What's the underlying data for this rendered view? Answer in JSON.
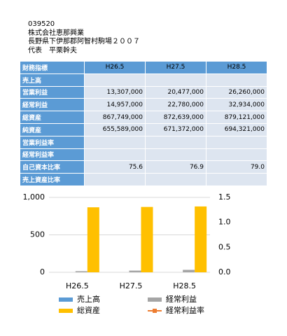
{
  "header": {
    "lines": [
      "039520",
      "株式会社恵那興業",
      "長野県下伊那郡阿智村駒場２００７",
      "代表　平栗幹夫"
    ]
  },
  "table": {
    "columns": [
      "財務指標",
      "H26.5",
      "H27.5",
      "H28.5"
    ],
    "rows": [
      [
        "売上高",
        null,
        null,
        null
      ],
      [
        "営業利益",
        "13,307,000",
        "20,477,000",
        "26,260,000"
      ],
      [
        "経常利益",
        "14,957,000",
        "22,780,000",
        "32,934,000"
      ],
      [
        "総資産",
        "867,749,000",
        "872,639,000",
        "879,121,000"
      ],
      [
        "純資産",
        "655,589,000",
        "671,372,000",
        "694,321,000"
      ],
      [
        "営業利益率",
        null,
        null,
        null
      ],
      [
        "経常利益率",
        null,
        null,
        null
      ],
      [
        "自己資本比率",
        "75.6",
        "76.9",
        "79.0"
      ],
      [
        "売上資産比率",
        null,
        null,
        null
      ]
    ]
  },
  "chart_data": {
    "type": "bar",
    "categories": [
      "H26.5",
      "H27.5",
      "H28.5"
    ],
    "series": [
      {
        "name": "売上高",
        "color": "#5b9bd5",
        "values": [
          null,
          null,
          null
        ]
      },
      {
        "name": "経常利益",
        "color": "#a5a5a5",
        "values": [
          14.957,
          22.78,
          32.934
        ]
      },
      {
        "name": "総資産",
        "color": "#ffc000",
        "values": [
          867.749,
          872.639,
          879.121
        ]
      },
      {
        "name": "経常利益率",
        "color": "#ed7d31",
        "type": "line",
        "axis": "y2",
        "values": [
          null,
          null,
          null
        ]
      }
    ],
    "ylim": [
      0,
      1000
    ],
    "yticks": [
      0,
      500,
      {
        "value": 1000,
        "label": "1,000"
      }
    ],
    "y2lim": [
      0,
      1.5
    ],
    "y2ticks": [
      {
        "value": 0,
        "label": "0.0"
      },
      0.5,
      {
        "value": 1,
        "label": "1.0"
      },
      1.5
    ],
    "grid": true
  }
}
